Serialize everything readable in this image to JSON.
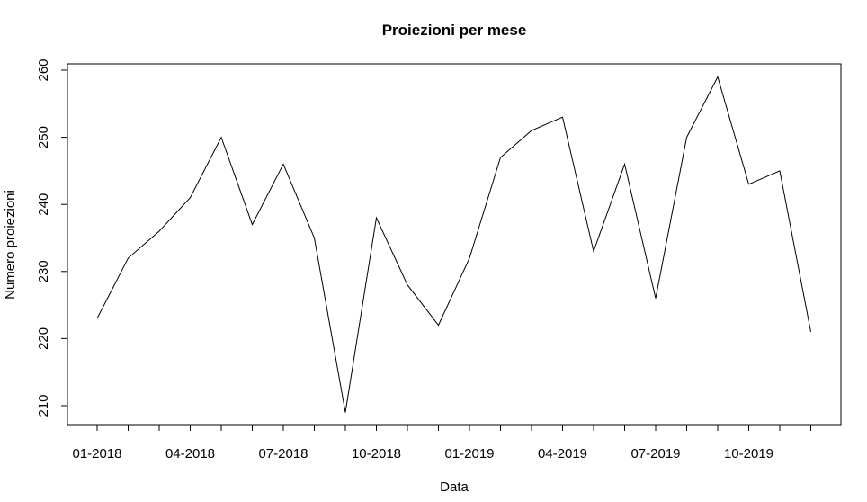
{
  "chart_data": {
    "type": "line",
    "title": "Proiezioni per mese",
    "xlabel": "Data",
    "ylabel": "Numero proiezioni",
    "x": [
      "01-2018",
      "02-2018",
      "03-2018",
      "04-2018",
      "05-2018",
      "06-2018",
      "07-2018",
      "08-2018",
      "09-2018",
      "10-2018",
      "11-2018",
      "12-2018",
      "01-2019",
      "02-2019",
      "03-2019",
      "04-2019",
      "05-2019",
      "06-2019",
      "07-2019",
      "08-2019",
      "09-2019",
      "10-2019",
      "11-2019",
      "12-2019"
    ],
    "series": [
      {
        "values": [
          223,
          232,
          236,
          241,
          250,
          237,
          246,
          235,
          209,
          238,
          228,
          222,
          232,
          247,
          251,
          253,
          233,
          246,
          226,
          250,
          259,
          243,
          245,
          221
        ]
      }
    ],
    "x_tick_labels": [
      "01-2018",
      "04-2018",
      "07-2018",
      "10-2018",
      "01-2019",
      "04-2019",
      "07-2019",
      "10-2019"
    ],
    "y_ticks": [
      210,
      220,
      230,
      240,
      250,
      260
    ],
    "ylim": [
      207,
      261
    ],
    "grid": false,
    "line_color": "#000000"
  }
}
